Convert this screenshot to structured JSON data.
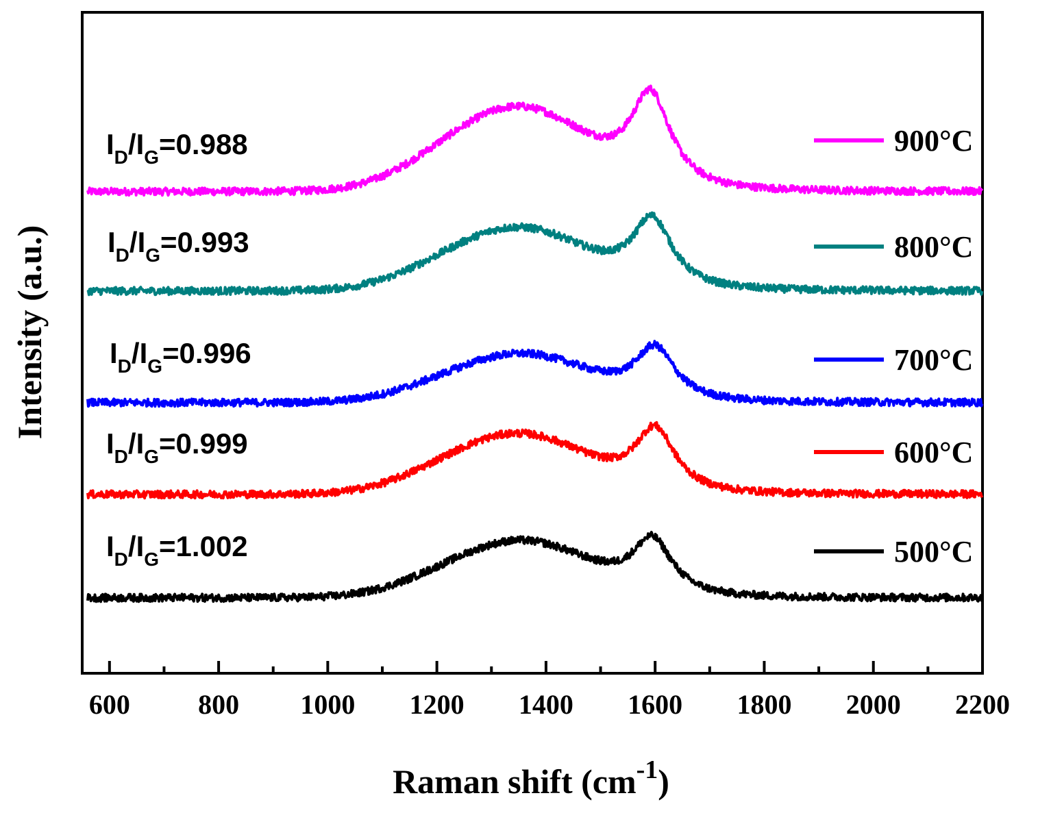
{
  "chart_data": {
    "type": "line",
    "title": "",
    "xlabel": "Raman shift (cm",
    "xlabel_superscript": "-1",
    "xlabel_suffix": ")",
    "ylabel": "Intensity (a.u.)",
    "xlim": [
      550,
      2200
    ],
    "xticks": [
      600,
      800,
      1000,
      1200,
      1400,
      1600,
      1800,
      2000,
      2200
    ],
    "xtick_labels": [
      "600",
      "800",
      "1000",
      "1200",
      "1400",
      "1600",
      "1800",
      "2000",
      "2200"
    ],
    "yticks_shown": false,
    "legend_position": "right",
    "series": [
      {
        "name": "900°C",
        "color": "#ff00ff",
        "ratio_prefix": "I",
        "ratio_sub_d": "D",
        "ratio_slash": "/I",
        "ratio_sub_g": "G",
        "ratio_value": "=0.988",
        "baseline": 0.0,
        "d_peak": 1355,
        "d_height": 1.0,
        "g_peak": 1592,
        "g_height": 1.15
      },
      {
        "name": "800°C",
        "color": "#008080",
        "ratio_prefix": "I",
        "ratio_sub_d": "D",
        "ratio_slash": "/I",
        "ratio_sub_g": "G",
        "ratio_value": "=0.993",
        "baseline": 0.0,
        "d_peak": 1355,
        "d_height": 0.75,
        "g_peak": 1595,
        "g_height": 0.85
      },
      {
        "name": "700°C",
        "color": "#0000ff",
        "ratio_prefix": "I",
        "ratio_sub_d": "D",
        "ratio_slash": "/I",
        "ratio_sub_g": "G",
        "ratio_value": "=0.996",
        "baseline": 0.0,
        "d_peak": 1360,
        "d_height": 0.58,
        "g_peak": 1600,
        "g_height": 0.65
      },
      {
        "name": "600°C",
        "color": "#ff0000",
        "ratio_prefix": "I",
        "ratio_sub_d": "D",
        "ratio_slash": "/I",
        "ratio_sub_g": "G",
        "ratio_value": "=0.999",
        "baseline": 0.0,
        "d_peak": 1355,
        "d_height": 0.72,
        "g_peak": 1600,
        "g_height": 0.78
      },
      {
        "name": "500°C",
        "color": "#000000",
        "ratio_prefix": "I",
        "ratio_sub_d": "D",
        "ratio_slash": "/I",
        "ratio_sub_g": "G",
        "ratio_value": "=1.002",
        "baseline": 0.0,
        "d_peak": 1360,
        "d_height": 0.68,
        "g_peak": 1595,
        "g_height": 0.68
      }
    ]
  }
}
